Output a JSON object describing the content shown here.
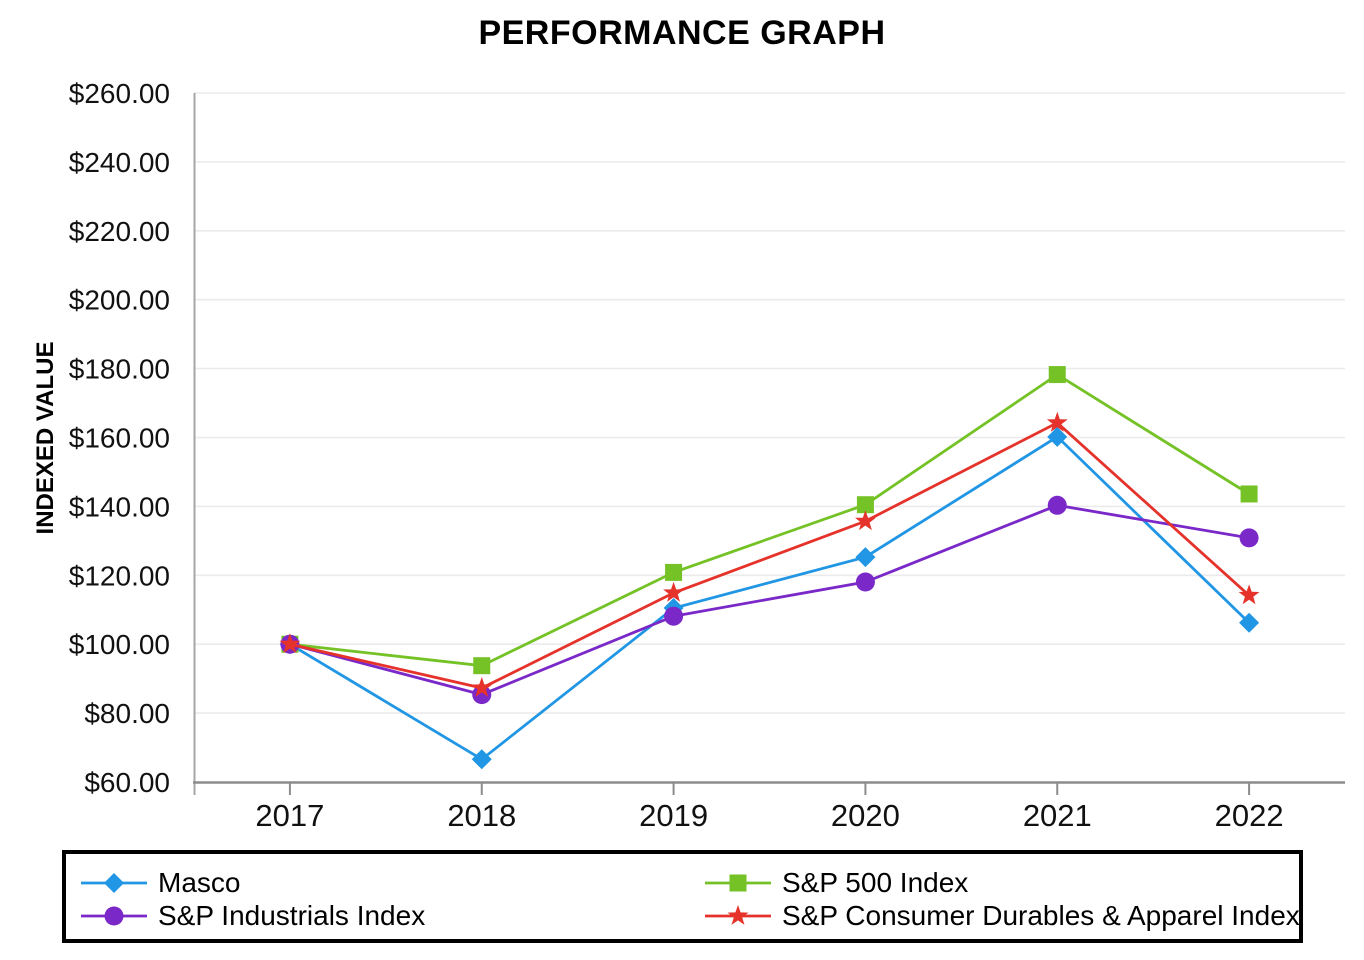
{
  "title": "PERFORMANCE GRAPH",
  "chart_data": {
    "type": "line",
    "title": "PERFORMANCE GRAPH",
    "xlabel": "",
    "ylabel": "INDEXED VALUE",
    "categories": [
      "2017",
      "2018",
      "2019",
      "2020",
      "2021",
      "2022"
    ],
    "series": [
      {
        "name": "Masco",
        "color": "#2196E4",
        "marker": "diamond",
        "values": [
          100.0,
          66.59,
          110.49,
          125.27,
          160.19,
          106.24
        ]
      },
      {
        "name": "S&P 500 Index",
        "color": "#74C226",
        "marker": "square",
        "values": [
          100.0,
          93.76,
          120.84,
          140.49,
          178.27,
          143.61
        ]
      },
      {
        "name": "S&P Industrials Index",
        "color": "#7A28C8",
        "marker": "circle",
        "values": [
          100.0,
          85.36,
          108.13,
          118.05,
          140.32,
          130.87
        ]
      },
      {
        "name": "S&P Consumer Durables & Apparel Index",
        "color": "#E5332B",
        "marker": "star",
        "values": [
          100.0,
          87.29,
          114.88,
          135.7,
          164.26,
          114.17
        ]
      }
    ],
    "ylim": [
      60,
      260
    ],
    "ytick_step": 20,
    "ytick_labels": [
      "$260.00",
      "$240.00",
      "$220.00",
      "$200.00",
      "$180.00",
      "$160.00",
      "$140.00",
      "$120.00",
      "$100.00",
      "$80.00",
      "$60.00"
    ],
    "grid": true,
    "legend_position": "bottom-box"
  },
  "legend": {
    "columns": [
      [
        "Masco",
        "S&P Industrials Index"
      ],
      [
        "S&P 500 Index",
        "S&P Consumer Durables & Apparel Index"
      ]
    ]
  }
}
